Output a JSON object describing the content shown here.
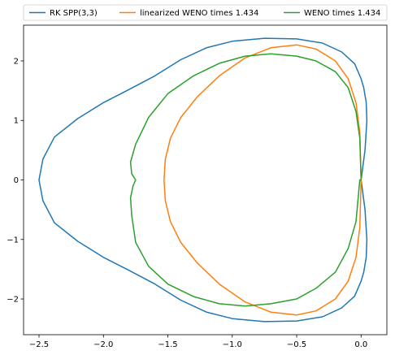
{
  "chart_data": {
    "type": "line",
    "title": "",
    "xlabel": "",
    "ylabel": "",
    "xlim": [
      -2.62,
      0.2
    ],
    "ylim": [
      -2.6,
      2.6
    ],
    "xticks": [
      -2.5,
      -2.0,
      -1.5,
      -1.0,
      -0.5,
      0.0
    ],
    "xtick_labels": [
      "−2.5",
      "−2.0",
      "−1.5",
      "−1.0",
      "−0.5",
      "0.0"
    ],
    "yticks": [
      -2,
      -1,
      0,
      1,
      2
    ],
    "ytick_labels": [
      "−2",
      "−1",
      "0",
      "1",
      "2"
    ],
    "grid": false,
    "legend_position": "top",
    "legend_columns": 3,
    "series": [
      {
        "name": "RK SPP(3,3)",
        "color": "#1f77b4",
        "x": [
          0.0,
          0.03,
          0.045,
          0.04,
          0.02,
          0.0,
          -0.05,
          -0.15,
          -0.3,
          -0.5,
          -0.75,
          -1.0,
          -1.2,
          -1.4,
          -1.6,
          -1.8,
          -2.0,
          -2.2,
          -2.38,
          -2.47,
          -2.5,
          -2.47,
          -2.38,
          -2.2,
          -2.0,
          -1.8,
          -1.6,
          -1.4,
          -1.2,
          -1.0,
          -0.75,
          -0.5,
          -0.3,
          -0.15,
          -0.05,
          0.0,
          0.02,
          0.04,
          0.045,
          0.03,
          0.0
        ],
        "y": [
          0.0,
          0.5,
          1.0,
          1.3,
          1.55,
          1.7,
          1.95,
          2.15,
          2.3,
          2.37,
          2.38,
          2.33,
          2.22,
          2.02,
          1.75,
          1.52,
          1.3,
          1.03,
          0.72,
          0.35,
          0.0,
          -0.35,
          -0.72,
          -1.03,
          -1.3,
          -1.52,
          -1.75,
          -2.02,
          -2.22,
          -2.33,
          -2.38,
          -2.37,
          -2.3,
          -2.15,
          -1.95,
          -1.7,
          -1.55,
          -1.3,
          -1.0,
          -0.5,
          0.0
        ]
      },
      {
        "name": "linearized WENO times 1.434",
        "color": "#ff7f0e",
        "x": [
          0.0,
          -0.01,
          -0.04,
          -0.1,
          -0.2,
          -0.35,
          -0.5,
          -0.7,
          -0.9,
          -1.1,
          -1.27,
          -1.4,
          -1.48,
          -1.52,
          -1.53,
          -1.52,
          -1.48,
          -1.4,
          -1.27,
          -1.1,
          -0.9,
          -0.7,
          -0.5,
          -0.35,
          -0.2,
          -0.1,
          -0.04,
          -0.01,
          0.0
        ],
        "y": [
          0.0,
          0.8,
          1.3,
          1.7,
          2.0,
          2.2,
          2.27,
          2.22,
          2.05,
          1.75,
          1.4,
          1.05,
          0.7,
          0.35,
          0.0,
          -0.35,
          -0.7,
          -1.05,
          -1.4,
          -1.75,
          -2.05,
          -2.22,
          -2.27,
          -2.2,
          -2.0,
          -1.7,
          -1.3,
          -0.8,
          0.0
        ]
      },
      {
        "name": "WENO times 1.434",
        "color": "#2ca02c",
        "x": [
          0.0,
          -0.01,
          -0.04,
          -0.1,
          -0.2,
          -0.35,
          -0.5,
          -0.7,
          -0.9,
          -1.1,
          -1.3,
          -1.5,
          -1.65,
          -1.75,
          -1.79,
          -1.78,
          -1.75,
          -1.77,
          -1.79,
          -1.78,
          -1.75,
          -1.65,
          -1.5,
          -1.3,
          -1.1,
          -0.9,
          -0.7,
          -0.5,
          -0.35,
          -0.2,
          -0.1,
          -0.04,
          -0.01,
          0.0
        ],
        "y": [
          0.0,
          0.7,
          1.15,
          1.55,
          1.82,
          2.0,
          2.08,
          2.12,
          2.08,
          1.96,
          1.75,
          1.45,
          1.05,
          0.6,
          0.3,
          0.1,
          0.0,
          -0.1,
          -0.3,
          -0.6,
          -1.05,
          -1.45,
          -1.75,
          -1.96,
          -2.08,
          -2.12,
          -2.08,
          -2.0,
          -1.82,
          -1.55,
          -1.15,
          -0.7,
          0.0,
          0.0
        ]
      }
    ]
  }
}
